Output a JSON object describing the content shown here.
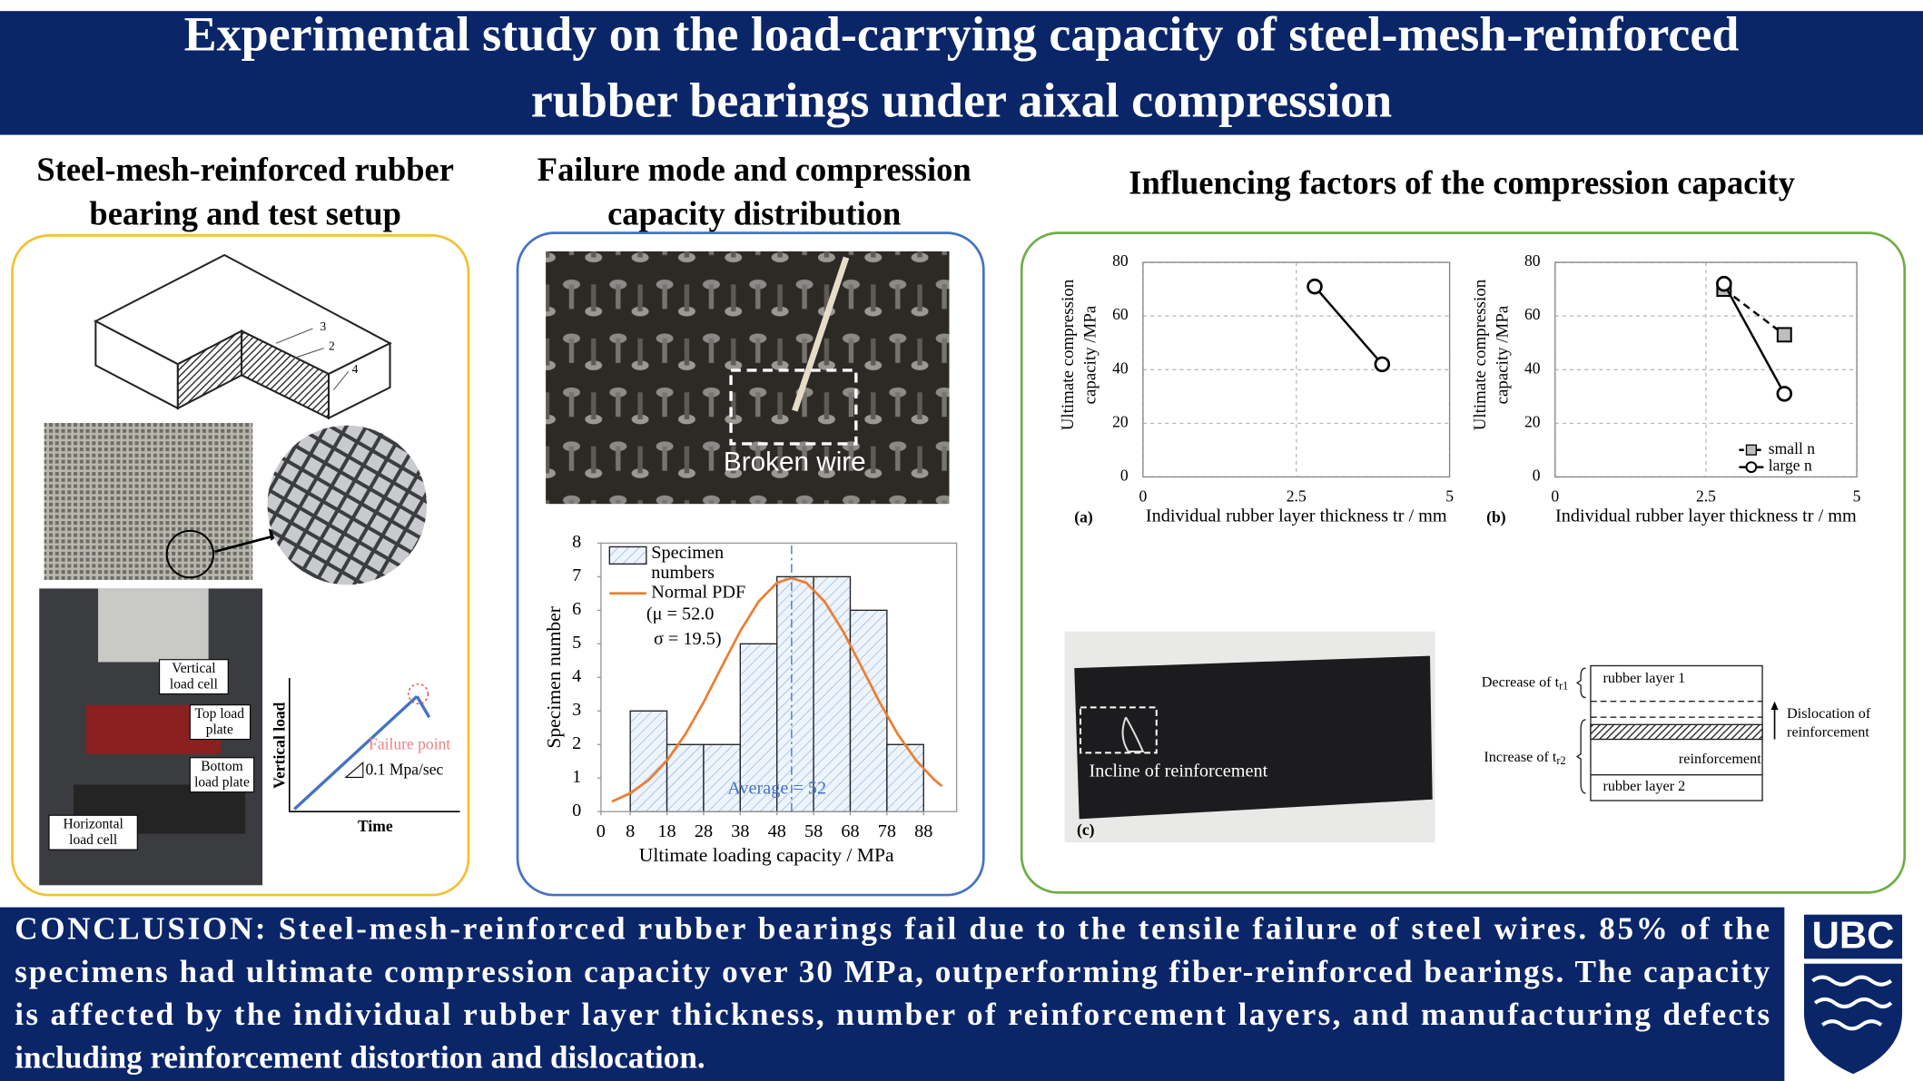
{
  "header": {
    "title_lines": [
      "Experimental study on the load-carrying capacity of steel-mesh-reinforced",
      "rubber bearings under aixal compression"
    ]
  },
  "sections": [
    {
      "title_lines": [
        "Steel-mesh-reinforced rubber",
        "bearing and test setup"
      ]
    },
    {
      "title_lines": [
        "Failure mode and compression",
        "capacity distribution"
      ]
    },
    {
      "title_lines": [
        "Influencing factors of the compression capacity"
      ]
    }
  ],
  "setup": {
    "part_labels": [
      "3",
      "2",
      "4"
    ],
    "photo_labels": [
      [
        "Vertical",
        "load cell"
      ],
      [
        "Top load",
        "plate"
      ],
      [
        "Bottom",
        "load plate"
      ],
      [
        "Horizontal",
        "load cell"
      ]
    ],
    "load_curve": {
      "y_label": "Vertical load",
      "x_label": "Time",
      "failure": "Failure point",
      "rate": "0.1 Mpa/sec"
    }
  },
  "failure_photo": {
    "label": "Broken wire"
  },
  "defects": {
    "panel": "(c)",
    "photo_label": "Incline of reinforcement",
    "decrease": "Decrease of t",
    "decrease_sub": "r1",
    "increase": "Increase of t",
    "increase_sub": "r2",
    "layer1": "rubber layer 1",
    "layer2": "rubber layer 2",
    "reinforcement": "reinforcement",
    "dislocation": [
      "Dislocation of",
      "reinforcement"
    ]
  },
  "chart_data": [
    {
      "type": "histogram",
      "x_label": "Ultimate loading capacity / MPa",
      "y_label": "Specimen number",
      "bins": [
        8,
        18,
        28,
        38,
        48,
        58,
        68,
        78,
        88
      ],
      "counts": [
        3,
        2,
        2,
        5,
        7,
        7,
        6,
        2
      ],
      "bar_name": [
        "Specimen",
        "numbers"
      ],
      "pdf": {
        "name": [
          "Normal PDF",
          "(μ = 52.0",
          "σ = 19.5)"
        ],
        "color": "#ed7d31",
        "x": [
          3,
          8,
          13,
          18,
          23,
          28,
          33,
          38,
          43,
          48,
          52,
          56,
          61,
          66,
          71,
          76,
          81,
          86,
          91,
          93
        ],
        "values": [
          0.3,
          0.55,
          0.94,
          1.52,
          2.3,
          3.26,
          4.33,
          5.38,
          6.26,
          6.82,
          6.96,
          6.82,
          6.26,
          5.38,
          4.33,
          3.26,
          2.3,
          1.52,
          0.94,
          0.76
        ]
      },
      "average": {
        "value": 52,
        "label": "Average = 52",
        "color": "#4472c4"
      },
      "xlim": [
        0,
        97
      ],
      "xticks": [
        0,
        8,
        18,
        28,
        38,
        48,
        58,
        68,
        78,
        88
      ],
      "ylim": [
        0,
        8
      ],
      "yticks": [
        0,
        1,
        2,
        3,
        4,
        5,
        6,
        7,
        8
      ]
    },
    {
      "type": "line",
      "panel": "(a)",
      "x_label": "Individual rubber layer thickness tr / mm",
      "y_label": [
        "Ultimate compression",
        "capacity /MPa"
      ],
      "xlim": [
        0,
        5
      ],
      "xticks": [
        0,
        2.5,
        5
      ],
      "ylim": [
        0,
        80
      ],
      "yticks": [
        0,
        20,
        40,
        60,
        80
      ],
      "grid": true,
      "series": [
        {
          "x": [
            2.8,
            3.9
          ],
          "values": [
            71,
            42
          ],
          "color": "#000000",
          "marker": "circle",
          "dashed": false
        }
      ]
    },
    {
      "type": "line",
      "panel": "(b)",
      "x_label": "Individual rubber layer thickness tr / mm",
      "y_label": [
        "Ultimate compression",
        "capacity /MPa"
      ],
      "xlim": [
        0,
        5
      ],
      "xticks": [
        0,
        2.5,
        5
      ],
      "ylim": [
        0,
        80
      ],
      "yticks": [
        0,
        20,
        40,
        60,
        80
      ],
      "grid": true,
      "legend": "lower right",
      "series": [
        {
          "name": "small n",
          "x": [
            2.8,
            3.8
          ],
          "values": [
            70,
            53
          ],
          "color": "#000000",
          "marker": "square",
          "dashed": true
        },
        {
          "name": "large n",
          "x": [
            2.8,
            3.8
          ],
          "values": [
            72,
            31
          ],
          "color": "#000000",
          "marker": "circle",
          "dashed": false
        }
      ]
    }
  ],
  "conclusion": {
    "lines": [
      "CONCLUSION: Steel-mesh-reinforced rubber bearings fail due to the tensile failure of steel wires. 85% of the",
      "specimens had ultimate compression capacity over 30 MPa, outperforming fiber-reinforced bearings. The capacity",
      "is affected by the individual rubber layer thickness, number of reinforcement layers, and manufacturing defects",
      "including reinforcement distortion and dislocation."
    ]
  },
  "logo": {
    "text": "UBC"
  }
}
